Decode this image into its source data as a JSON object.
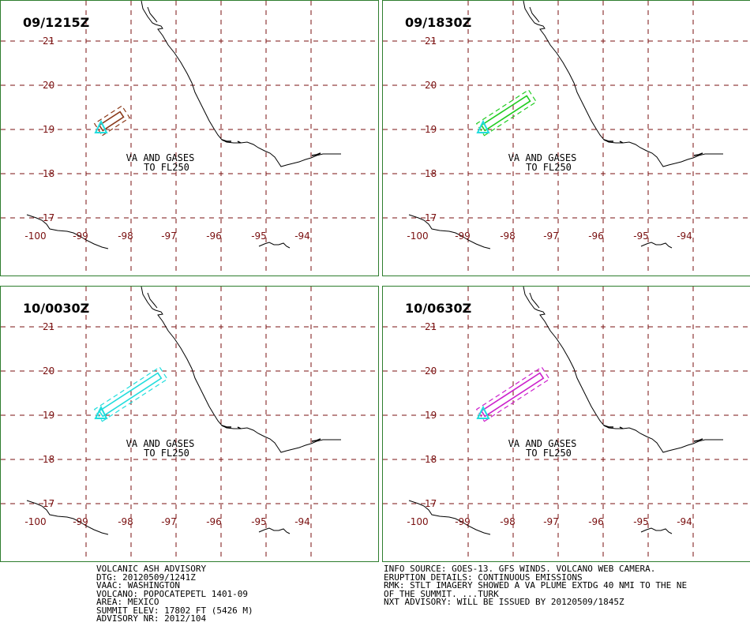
{
  "panels": [
    {
      "time": "09/1215Z",
      "plume_color": "#8b3a1a",
      "plume_length_deg": 0.55
    },
    {
      "time": "09/1830Z",
      "plume_color": "#22cc22",
      "plume_length_deg": 1.2
    },
    {
      "time": "10/0030Z",
      "plume_color": "#22dddd",
      "plume_length_deg": 1.55
    },
    {
      "time": "10/0630Z",
      "plume_color": "#cc22cc",
      "plume_length_deg": 1.55
    }
  ],
  "map": {
    "lat_labels": [
      "21",
      "20",
      "19",
      "18",
      "17"
    ],
    "lon_labels": [
      "-100",
      "-99",
      "-98",
      "-97",
      "-96",
      "-95",
      "-94"
    ],
    "annotation_line1": "VA AND GASES",
    "annotation_line2": "TO FL250",
    "grid_color": "#7a1010",
    "coast_color": "#000000",
    "volcano_color": "#22dddd"
  },
  "advisory_left": [
    "VOLCANIC ASH ADVISORY",
    "DTG: 20120509/1241Z",
    "VAAC: WASHINGTON",
    "VOLCANO: POPOCATEPETL 1401-09",
    "AREA: MEXICO",
    "SUMMIT ELEV: 17802 FT (5426 M)",
    "ADVISORY NR: 2012/104"
  ],
  "advisory_right": [
    "INFO SOURCE: GOES-13. GFS WINDS. VOLCANO WEB CAMERA.",
    "ERUPTION DETAILS: CONTINUOUS EMISSIONS",
    "RMK: STLT IMAGERY SHOWED A VA PLUME EXTDG 40 NMI TO THE NE",
    "OF THE SUMMIT. ...TURK",
    "NXT ADVISORY: WILL BE ISSUED BY 20120509/1845Z"
  ]
}
